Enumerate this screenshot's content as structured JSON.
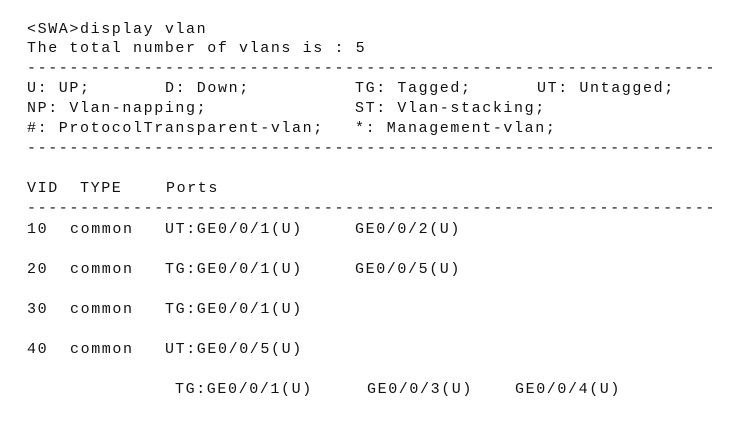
{
  "command_line": "<SWA>display vlan",
  "total_line": "The total number of vlans is : 5",
  "separator": "-----------------------------------------------------------------",
  "legend": {
    "row1": [
      "U: UP;",
      "D: Down;",
      "TG: Tagged;",
      "UT: Untagged;"
    ],
    "row2": [
      "NP: Vlan-napping;",
      "ST: Vlan-stacking;"
    ],
    "row3": [
      "#: ProtocolTransparent-vlan;",
      "*: Management-vlan;"
    ]
  },
  "table": {
    "headers": [
      "VID",
      "TYPE",
      "Ports"
    ],
    "rows": [
      {
        "vid": "10",
        "type": "common",
        "ports": [
          "UT:GE0/0/1(U)",
          "GE0/0/2(U)"
        ]
      },
      {
        "vid": "20",
        "type": "common",
        "ports": [
          "TG:GE0/0/1(U)",
          "GE0/0/5(U)"
        ]
      },
      {
        "vid": "30",
        "type": "common",
        "ports": [
          "TG:GE0/0/1(U)"
        ]
      },
      {
        "vid": "40",
        "type": "common",
        "ports": [
          "UT:GE0/0/5(U)"
        ]
      },
      {
        "vid": "",
        "type": "",
        "ports": [
          "TG:GE0/0/1(U)",
          "GE0/0/3(U)",
          "GE0/0/4(U)"
        ]
      }
    ]
  }
}
